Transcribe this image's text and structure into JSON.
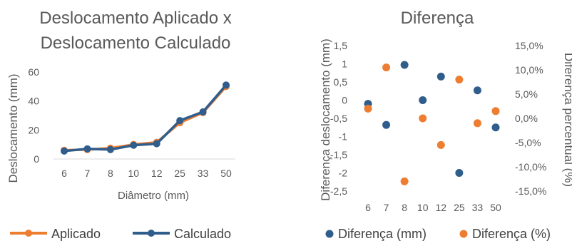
{
  "chart_data": [
    {
      "type": "line",
      "title": "Deslocamento Aplicado x Deslocamento Calculado",
      "title_lines": [
        "Deslocamento Aplicado x",
        "Deslocamento Calculado"
      ],
      "xlabel": "Diâmetro (mm)",
      "ylabel": "Deslocamento (mm)",
      "categories": [
        "6",
        "7",
        "8",
        "10",
        "12",
        "25",
        "33",
        "50"
      ],
      "ylim": [
        0,
        60
      ],
      "yticks": [
        "0",
        "20",
        "40",
        "60"
      ],
      "grid": false,
      "legend": "bottom",
      "series": [
        {
          "name": "Aplicado",
          "color": "#ED7D31",
          "values": [
            6,
            6.5,
            7.5,
            10,
            11.5,
            25,
            32,
            50
          ]
        },
        {
          "name": "Calculado",
          "color": "#2F5D8C",
          "values": [
            5.5,
            7,
            6.5,
            9.5,
            10.5,
            26.5,
            32.5,
            51
          ]
        }
      ]
    },
    {
      "type": "scatter",
      "title": "Diferença",
      "categories": [
        "6",
        "7",
        "8",
        "10",
        "12",
        "25",
        "33",
        "50"
      ],
      "ylabel": "Diferença deslocamento (mm)",
      "y2label": "Diferença percentual (%)",
      "ylim": [
        -2.5,
        1.5
      ],
      "yticks": [
        "1,5",
        "1",
        "0,5",
        "0",
        "-0,5",
        "-1",
        "-1,5",
        "-2",
        "-2,5"
      ],
      "y2lim": [
        -0.15,
        0.15
      ],
      "y2ticks": [
        "15,0%",
        "10,0%",
        "5,0%",
        "0,0%",
        "-5,0%",
        "-10,0%",
        "-15,0%"
      ],
      "grid": false,
      "legend": "bottom",
      "series": [
        {
          "name": "Diferença (mm)",
          "color": "#2F5D8C",
          "axis": "left",
          "values": [
            -0.1,
            -0.68,
            0.97,
            0.0,
            0.65,
            -2.0,
            0.27,
            -0.75
          ]
        },
        {
          "name": "Diferença (%)",
          "color": "#ED7D31",
          "axis": "right",
          "values": [
            0.02,
            0.105,
            -0.13,
            0.0,
            -0.055,
            0.08,
            -0.01,
            0.015
          ]
        }
      ]
    }
  ]
}
